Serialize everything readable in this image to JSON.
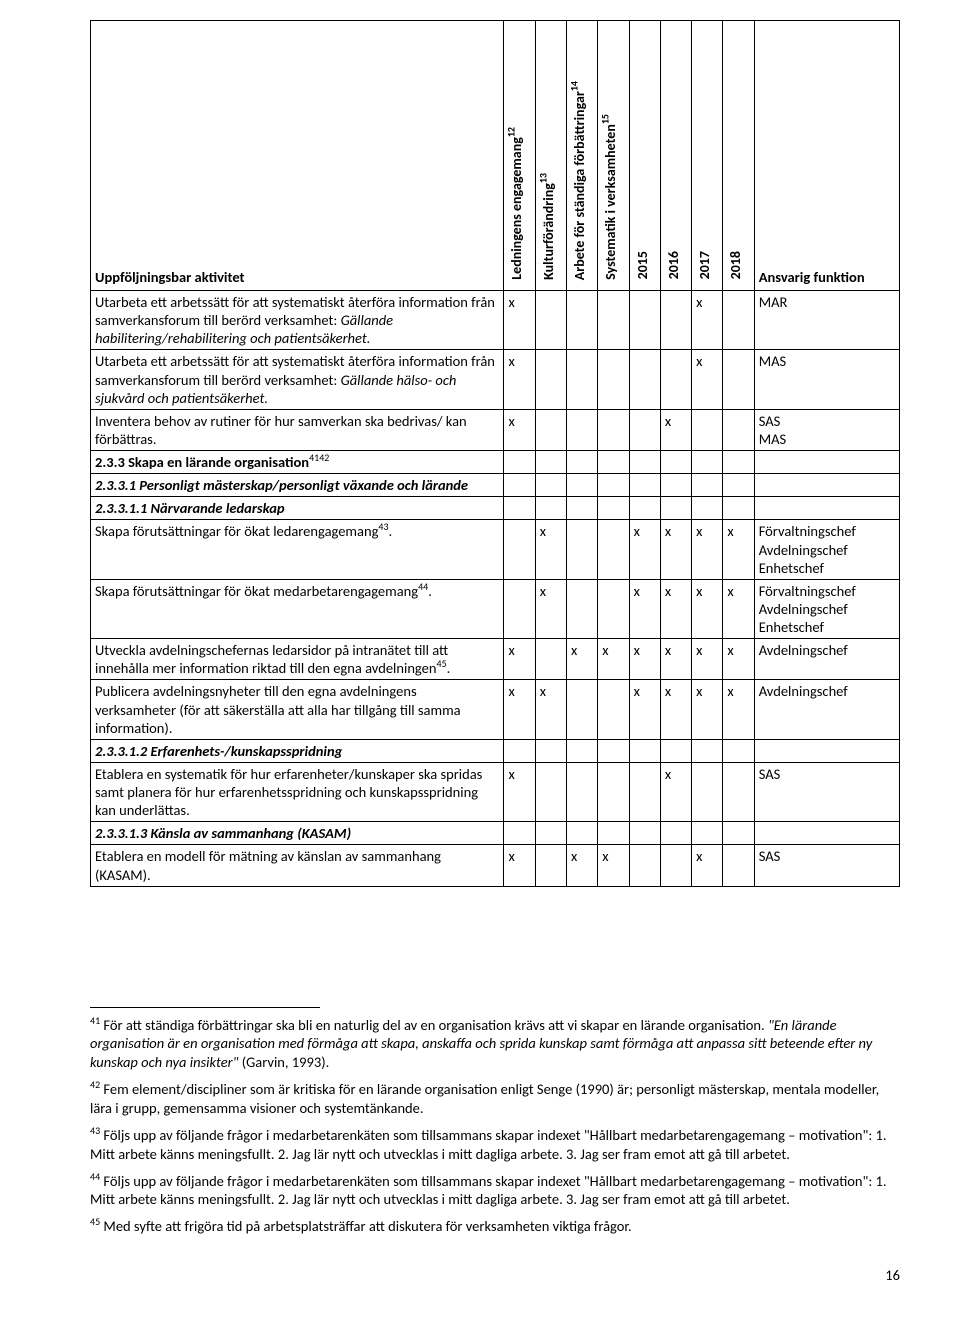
{
  "title": "Uppföljningsbar aktivitet",
  "columns": {
    "activity": "Uppföljningsbar aktivitet",
    "c1": {
      "label": "Ledningens engagemang",
      "sup": "12"
    },
    "c2": {
      "label": "Kulturförändring",
      "sup": "13"
    },
    "c3": {
      "label": "Arbete för ständiga förbättringar",
      "sup": "14"
    },
    "c4": {
      "label": "Systematik i verksamheten",
      "sup": "15"
    },
    "y2015": "2015",
    "y2016": "2016",
    "y2017": "2017",
    "y2018": "2018",
    "resp": "Ansvarig funktion"
  },
  "mark": "x",
  "rows": [
    {
      "activity_html": "Utarbeta ett arbetssätt för att systematiskt återföra information från samverkansforum till berörd verksamhet: <span class='italic'>Gällande habilitering/rehabilitering och patientsäkerhet.</span>",
      "marks": [
        true,
        false,
        false,
        false,
        false,
        false,
        true,
        false
      ],
      "resp": "MAR"
    },
    {
      "activity_html": "Utarbeta ett arbetssätt för att systematiskt återföra information från samverkansforum till berörd verksamhet: <span class='italic'>Gällande hälso- och sjukvård och patientsäkerhet.</span>",
      "marks": [
        true,
        false,
        false,
        false,
        false,
        false,
        true,
        false
      ],
      "resp": "MAS"
    },
    {
      "activity_html": "Inventera behov av rutiner för hur samverkan ska bedrivas/ kan förbättras.",
      "marks": [
        true,
        false,
        false,
        false,
        false,
        true,
        false,
        false
      ],
      "resp": "SAS<br>MAS"
    },
    {
      "activity_html": "<span class='bold'>2.3.3 Skapa en lärande organisation</span><sup>4142</sup>",
      "marks": [],
      "resp": "",
      "section": true
    },
    {
      "activity_html": "<span class='bolditalic'>2.3.3.1 Personligt mästerskap/personligt växande och lärande</span>",
      "marks": [],
      "resp": "",
      "section": true
    },
    {
      "activity_html": "<span class='bolditalic'>2.3.3.1.1 Närvarande ledarskap</span>",
      "marks": [],
      "resp": "",
      "section": true
    },
    {
      "activity_html": "Skapa förutsättningar för ökat ledarengagemang<sup>43</sup>.",
      "marks": [
        false,
        true,
        false,
        false,
        true,
        true,
        true,
        true
      ],
      "resp": "Förvaltningschef<br>Avdelningschef<br>Enhetschef"
    },
    {
      "activity_html": "Skapa förutsättningar för ökat medarbetarengagemang<sup>44</sup>.",
      "marks": [
        false,
        true,
        false,
        false,
        true,
        true,
        true,
        true
      ],
      "resp": "Förvaltningschef<br>Avdelningschef<br>Enhetschef"
    },
    {
      "activity_html": "Utveckla avdelningschefernas ledarsidor på intranätet till att innehålla mer information riktad till den egna avdelningen<sup>45</sup>.",
      "marks": [
        true,
        false,
        true,
        true,
        true,
        true,
        true,
        true
      ],
      "resp": "Avdelningschef"
    },
    {
      "activity_html": "Publicera avdelningsnyheter till den egna avdelningens verksamheter (för att säkerställa att alla har tillgång till samma information).",
      "marks": [
        true,
        true,
        false,
        false,
        true,
        true,
        true,
        true
      ],
      "resp": "Avdelningschef"
    },
    {
      "activity_html": "<span class='bolditalic'>2.3.3.1.2 Erfarenhets-/kunskapsspridning</span>",
      "marks": [],
      "resp": "",
      "section": true
    },
    {
      "activity_html": "Etablera en systematik för hur erfarenheter/kunskaper ska spridas samt planera för hur erfarenhetsspridning och kunskapsspridning kan underlättas.",
      "marks": [
        true,
        false,
        false,
        false,
        false,
        true,
        false,
        false
      ],
      "resp": "SAS"
    },
    {
      "activity_html": "<span class='bolditalic'>2.3.3.1.3 Känsla av sammanhang (KASAM)</span>",
      "marks": [],
      "resp": "",
      "section": true
    },
    {
      "activity_html": "Etablera en modell för mätning av känslan av sammanhang (KASAM).",
      "marks": [
        true,
        false,
        true,
        true,
        false,
        false,
        true,
        false
      ],
      "resp": "SAS"
    }
  ],
  "footnotes": [
    {
      "num": "41",
      "html": "För att ständiga förbättringar ska bli en naturlig del av en organisation krävs att vi skapar en lärande organisation. <span class='italic'>\"En lärande organisation är en organisation med förmåga att skapa, anskaffa och sprida kunskap samt förmåga att anpassa sitt beteende efter ny kunskap och nya insikter\"</span> (Garvin, 1993)."
    },
    {
      "num": "42",
      "html": "Fem element/discipliner som är kritiska för en lärande organisation enligt Senge (1990) är; personligt mästerskap, mentala modeller, lära i grupp, gemensamma visioner och systemtänkande."
    },
    {
      "num": "43",
      "html": "Följs upp av följande frågor i medarbetarenkäten som tillsammans skapar indexet \"Hållbart medarbetarengagemang – motivation\": 1. Mitt arbete känns meningsfullt. 2. Jag lär nytt och utvecklas i mitt dagliga arbete. 3. Jag ser fram emot att gå till arbetet."
    },
    {
      "num": "44",
      "html": "Följs upp av följande frågor i medarbetarenkäten som tillsammans skapar indexet \"Hållbart medarbetarengagemang – motivation\": 1. Mitt arbete känns meningsfullt. 2. Jag lär nytt och utvecklas i mitt dagliga arbete. 3. Jag ser fram emot att gå till arbetet."
    },
    {
      "num": "45",
      "html": "Med syfte att frigöra tid på arbetsplatsträffar att diskutera för verksamheten viktiga frågor."
    }
  ],
  "page_number": "16"
}
